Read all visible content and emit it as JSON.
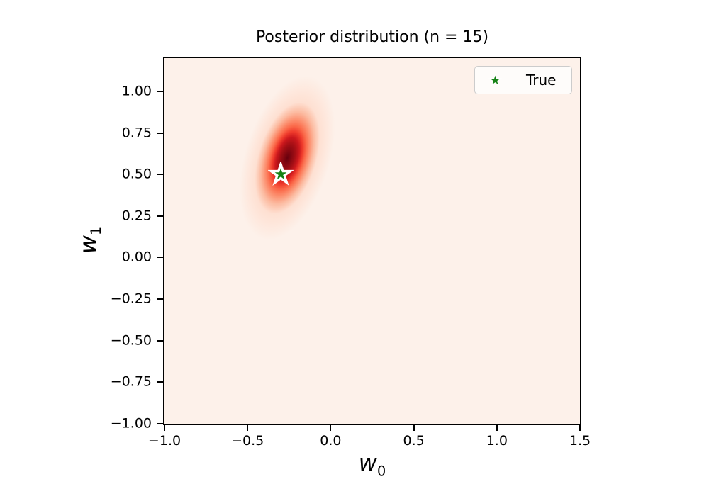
{
  "page": {
    "background": "#ffffff"
  },
  "chart_data": {
    "type": "heatmap",
    "title": "Posterior distribution (n = 15)",
    "xlabel": {
      "base": "w",
      "sub": "0"
    },
    "ylabel": {
      "base": "w",
      "sub": "1"
    },
    "xlim": [
      -1.0,
      1.5
    ],
    "ylim": [
      -1.0,
      1.2
    ],
    "x_ticks": [
      {
        "value": -1.0,
        "label": "−1.0"
      },
      {
        "value": -0.5,
        "label": "−0.5"
      },
      {
        "value": 0.0,
        "label": "0.0"
      },
      {
        "value": 0.5,
        "label": "0.5"
      },
      {
        "value": 1.0,
        "label": "1.0"
      },
      {
        "value": 1.5,
        "label": "1.5"
      }
    ],
    "y_ticks": [
      {
        "value": 1.0,
        "label": "1.00"
      },
      {
        "value": 0.75,
        "label": "0.75"
      },
      {
        "value": 0.5,
        "label": "0.50"
      },
      {
        "value": 0.25,
        "label": "0.25"
      },
      {
        "value": 0.0,
        "label": "0.00"
      },
      {
        "value": -0.25,
        "label": "−0.25"
      },
      {
        "value": -0.5,
        "label": "−0.50"
      },
      {
        "value": -0.75,
        "label": "−0.75"
      },
      {
        "value": -1.0,
        "label": "−1.00"
      }
    ],
    "grid": false,
    "plot_background": "#fdf1ea",
    "colormap": {
      "name": "Reds",
      "stops": [
        "#fff5f0",
        "#fee0d2",
        "#fcbba1",
        "#fc9272",
        "#fb6a4a",
        "#ef3b2c",
        "#cb181d",
        "#a50f15",
        "#67000d"
      ]
    },
    "density": {
      "kind": "gaussian_2d",
      "mode": {
        "w0": -0.26,
        "w1": 0.6
      },
      "sigma_major": 0.17,
      "sigma_minor": 0.085,
      "tilt_deg": 17
    },
    "true_point": {
      "w0": -0.3,
      "w1": 0.5,
      "marker": "star",
      "fill": "#168216",
      "edge": "#ffffff"
    },
    "legend": {
      "position": "upper-right",
      "entries": [
        {
          "label": "True",
          "marker": "star",
          "marker_color": "#168216"
        }
      ]
    }
  }
}
